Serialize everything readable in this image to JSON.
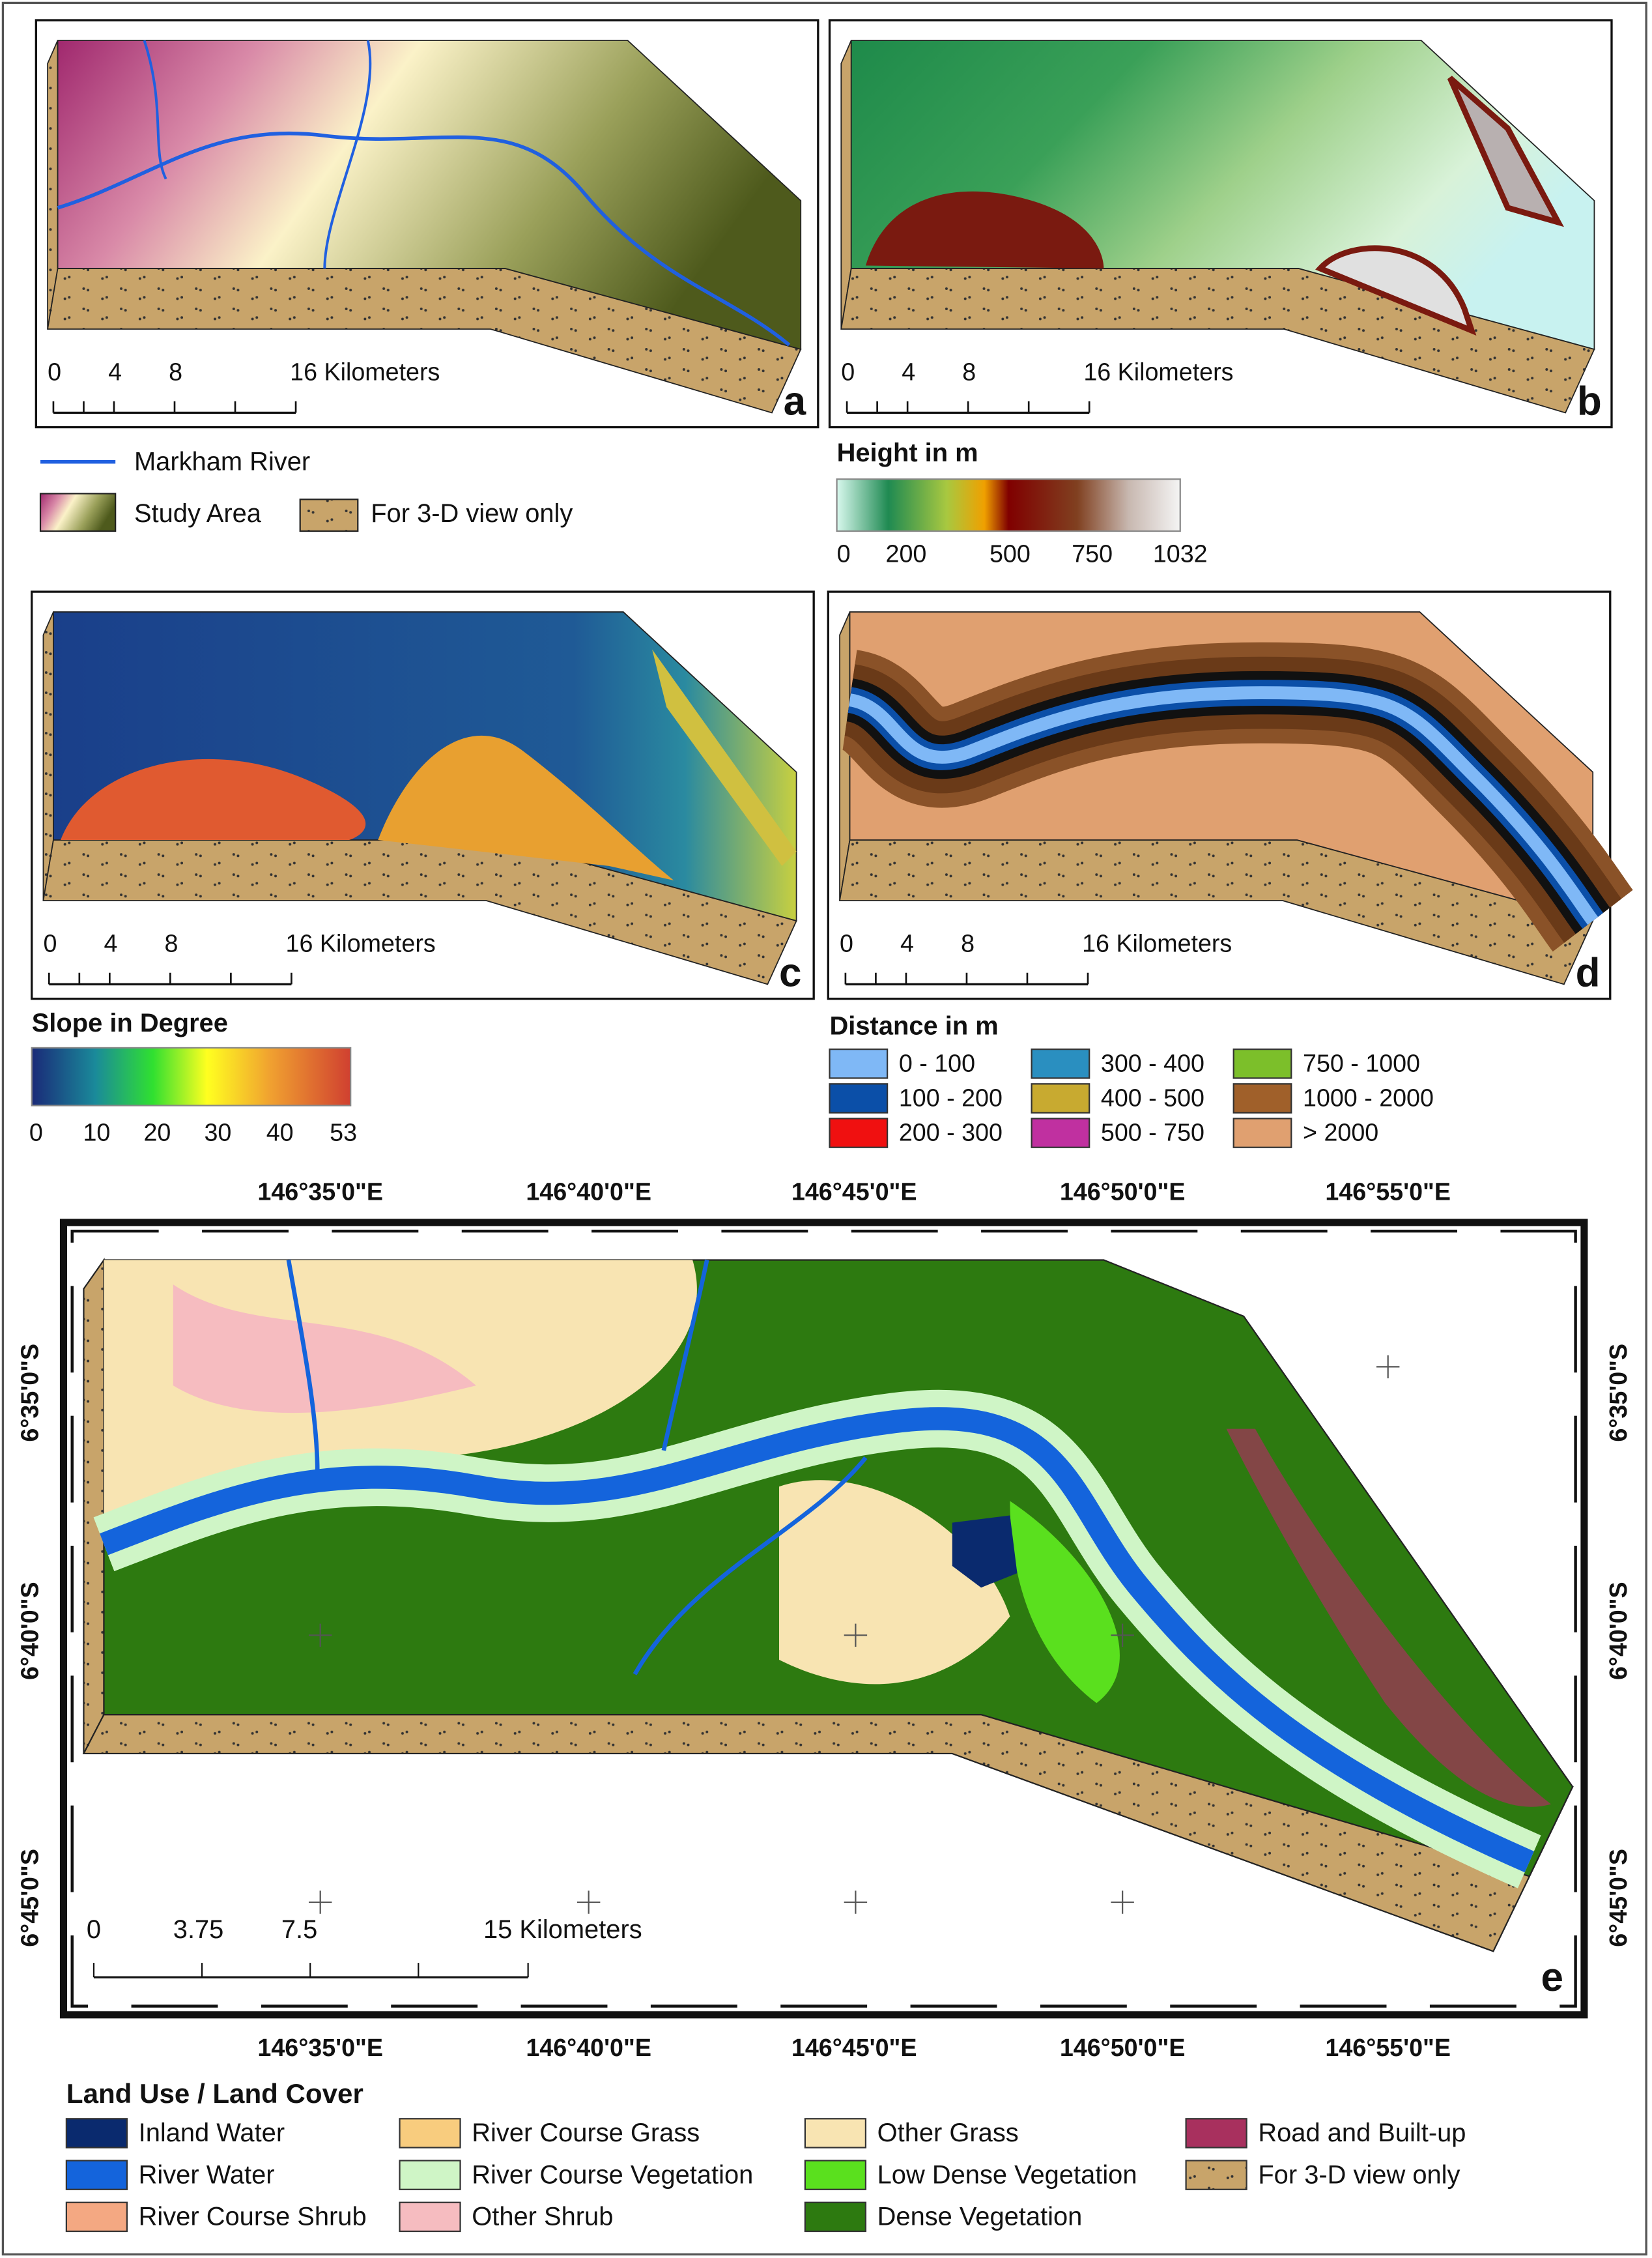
{
  "panels": [
    {
      "label": "a",
      "scale_bar": [
        "0",
        "4",
        "8",
        "16 Kilometers"
      ]
    },
    {
      "label": "b",
      "scale_bar": [
        "0",
        "4",
        "8",
        "16 Kilometers"
      ]
    },
    {
      "label": "c",
      "scale_bar": [
        "0",
        "4",
        "8",
        "16 Kilometers"
      ]
    },
    {
      "label": "d",
      "scale_bar": [
        "0",
        "4",
        "8",
        "16 Kilometers"
      ]
    },
    {
      "label": "e",
      "scale_bar": [
        "0",
        "3.75",
        "7.5",
        "15 Kilometers"
      ],
      "top_longitudes": [
        "146°35'0\"E",
        "146°40'0\"E",
        "146°45'0\"E",
        "146°50'0\"E",
        "146°55'0\"E"
      ],
      "bottom_longitudes": [
        "146°35'0\"E",
        "146°40'0\"E",
        "146°45'0\"E",
        "146°50'0\"E",
        "146°55'0\"E"
      ],
      "left_latitudes": [
        "6°35'0\"S",
        "6°40'0\"S",
        "6°45'0\"S"
      ],
      "right_latitudes": [
        "6°35'0\"S",
        "6°40'0\"S",
        "6°45'0\"S"
      ]
    }
  ],
  "study_legend": {
    "items": [
      "Markham River",
      "Study Area",
      "For 3-D view only"
    ]
  },
  "height_legend": {
    "title": "Height in m",
    "ticks": [
      "0",
      "200",
      "500",
      "750",
      "1032"
    ]
  },
  "slope_legend": {
    "title": "Slope in Degree",
    "ticks": [
      "0",
      "10",
      "20",
      "30",
      "40",
      "53"
    ]
  },
  "distance_legend": {
    "title": "Distance in m",
    "items": [
      {
        "label": "0 - 100",
        "color": "#7fb8f6"
      },
      {
        "label": "100 - 200",
        "color": "#0b4fa8"
      },
      {
        "label": "200 - 300",
        "color": "#f01010"
      },
      {
        "label": "300 - 400",
        "color": "#2a8fc0"
      },
      {
        "label": "400 - 500",
        "color": "#c8aa30"
      },
      {
        "label": "500 - 750",
        "color": "#c030a0"
      },
      {
        "label": "750 - 1000",
        "color": "#7cbf2a"
      },
      {
        "label": "1000 - 2000",
        "color": "#a0602a"
      },
      {
        "label": "> 2000",
        "color": "#e0a070"
      }
    ]
  },
  "lulc_legend": {
    "title": "Land Use / Land Cover",
    "items": [
      {
        "label": "Inland Water",
        "color": "#0a2a6e"
      },
      {
        "label": "River Water",
        "color": "#1464dc"
      },
      {
        "label": "River Course Shrub",
        "color": "#f4a882"
      },
      {
        "label": "River Course Grass",
        "color": "#f8cc7e"
      },
      {
        "label": "River Course Vegetation",
        "color": "#cff5c6"
      },
      {
        "label": "Other Shrub",
        "color": "#f6bcc0"
      },
      {
        "label": "Other Grass",
        "color": "#f8e4b2"
      },
      {
        "label": "Low Dense Vegetation",
        "color": "#5ae01e"
      },
      {
        "label": "Dense Vegetation",
        "color": "#2d7a10"
      },
      {
        "label": "Road and Built-up",
        "color": "#a8305e"
      },
      {
        "label": "For 3-D view only",
        "color": "#c8a46a"
      }
    ]
  }
}
